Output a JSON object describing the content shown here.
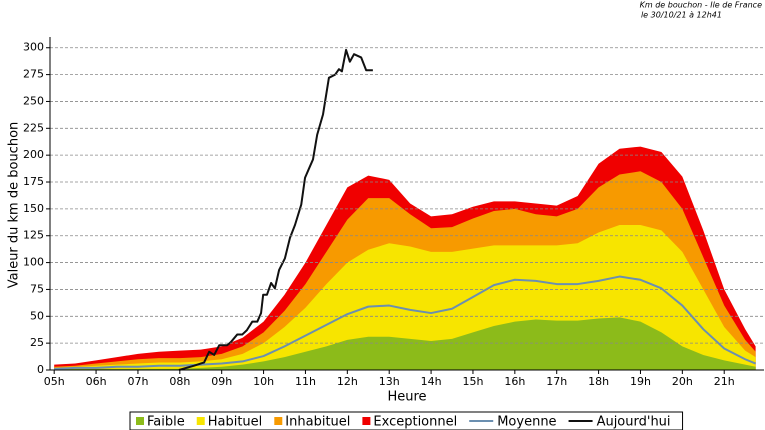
{
  "chart_data": {
    "type": "area",
    "title": "Km de bouchon - Ile de France",
    "subtitle": "le 30/10/21 à 12h41",
    "x_label": "Heure",
    "y_label": "Valeur du  km de bouchon",
    "xlim": [
      4.9,
      21.95
    ],
    "ylim": [
      0,
      310
    ],
    "xticks": [
      {
        "value": 5,
        "label": "05h"
      },
      {
        "value": 6,
        "label": "06h"
      },
      {
        "value": 7,
        "label": "07h"
      },
      {
        "value": 8,
        "label": "08h"
      },
      {
        "value": 9,
        "label": "09h"
      },
      {
        "value": 10,
        "label": "10h"
      },
      {
        "value": 11,
        "label": "11h"
      },
      {
        "value": 12,
        "label": "12h"
      },
      {
        "value": 13,
        "label": "13h"
      },
      {
        "value": 14,
        "label": "14h"
      },
      {
        "value": 15,
        "label": "15h"
      },
      {
        "value": 16,
        "label": "16h"
      },
      {
        "value": 17,
        "label": "17h"
      },
      {
        "value": 18,
        "label": "18h"
      },
      {
        "value": 19,
        "label": "19h"
      },
      {
        "value": 20,
        "label": "20h"
      },
      {
        "value": 21,
        "label": "21h"
      }
    ],
    "yticks": [
      0,
      25,
      50,
      75,
      100,
      125,
      150,
      175,
      200,
      225,
      250,
      275,
      300
    ],
    "grid": true,
    "legend": "bottom",
    "x": [
      5,
      5.5,
      6,
      6.5,
      7,
      7.5,
      8,
      8.5,
      9,
      9.5,
      10,
      10.5,
      11,
      11.5,
      12,
      12.5,
      13,
      13.5,
      14,
      14.5,
      15,
      15.5,
      16,
      16.5,
      17,
      17.5,
      18,
      18.5,
      19,
      19.5,
      20,
      20.5,
      21,
      21.5,
      21.75
    ],
    "series": [
      {
        "name": "Faible",
        "type": "area",
        "color": "#8cbb1a",
        "values": [
          1,
          1,
          1,
          1,
          1,
          1,
          1,
          2,
          3,
          5,
          8,
          12,
          17,
          22,
          28,
          31,
          31,
          29,
          27,
          29,
          35,
          41,
          45,
          47,
          46,
          46,
          48,
          49,
          45,
          35,
          22,
          14,
          9,
          5,
          3
        ]
      },
      {
        "name": "Habituel",
        "type": "area",
        "color": "#f7e500",
        "values": [
          2,
          3,
          4,
          5,
          6,
          7,
          7,
          8,
          10,
          15,
          25,
          40,
          58,
          80,
          100,
          112,
          118,
          115,
          110,
          110,
          113,
          116,
          116,
          116,
          116,
          118,
          128,
          135,
          135,
          130,
          110,
          75,
          40,
          18,
          12
        ]
      },
      {
        "name": "Inhabituel",
        "type": "area",
        "color": "#f79a00",
        "values": [
          3,
          4,
          6,
          8,
          10,
          11,
          11,
          12,
          15,
          22,
          35,
          55,
          80,
          110,
          140,
          160,
          160,
          145,
          132,
          133,
          141,
          148,
          150,
          145,
          143,
          150,
          170,
          182,
          185,
          175,
          150,
          105,
          60,
          28,
          17
        ]
      },
      {
        "name": "Exceptionnel",
        "type": "area",
        "color": "#f00000",
        "values": [
          5,
          6,
          9,
          12,
          15,
          17,
          18,
          19,
          22,
          30,
          45,
          70,
          100,
          135,
          170,
          181,
          177,
          155,
          143,
          145,
          152,
          157,
          157,
          155,
          153,
          162,
          192,
          206,
          208,
          203,
          180,
          130,
          75,
          38,
          22
        ]
      },
      {
        "name": "Moyenne",
        "type": "line",
        "color": "#6b8fb0",
        "values": [
          1,
          2,
          2,
          3,
          3,
          4,
          4,
          5,
          6,
          8,
          13,
          22,
          32,
          42,
          52,
          59,
          60,
          56,
          53,
          57,
          68,
          79,
          84,
          83,
          80,
          80,
          83,
          87,
          84,
          76,
          60,
          38,
          20,
          10,
          6
        ]
      },
      {
        "name": "Aujourd'hui",
        "type": "line",
        "color": "#111111",
        "x": [
          7.98,
          8.34,
          8.58,
          8.7,
          8.82,
          8.94,
          9.13,
          9.22,
          9.37,
          9.49,
          9.6,
          9.73,
          9.85,
          9.94,
          9.99,
          10.08,
          10.18,
          10.27,
          10.37,
          10.51,
          10.63,
          10.75,
          10.9,
          10.99,
          11.09,
          11.18,
          11.28,
          11.42,
          11.56,
          11.71,
          11.8,
          11.87,
          11.97,
          12.06,
          12.16,
          12.33,
          12.45,
          12.61
        ],
        "values": [
          0,
          4,
          7,
          17,
          14,
          23,
          23,
          26,
          33,
          33,
          37,
          45,
          45,
          53,
          70,
          70,
          81,
          76,
          93,
          104,
          123,
          135,
          154,
          179,
          188,
          196,
          219,
          238,
          272,
          275,
          280,
          278,
          298,
          287,
          294,
          291,
          279,
          279
        ]
      }
    ]
  }
}
